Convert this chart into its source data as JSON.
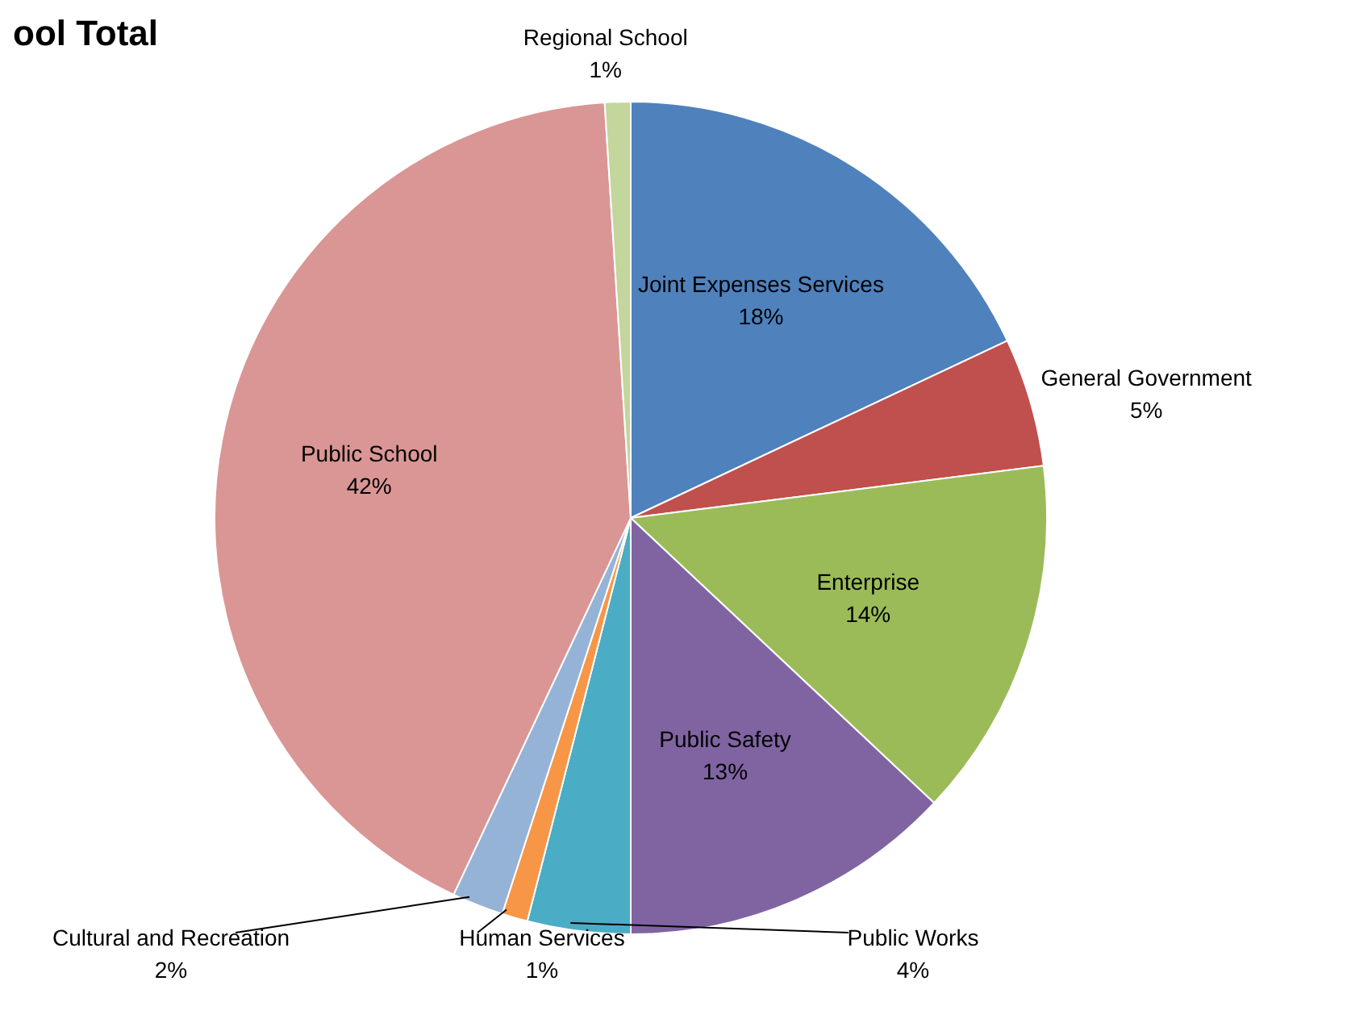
{
  "chart_data": {
    "type": "pie",
    "title": "ool Total",
    "categories": [
      "Joint Expenses Services",
      "General Government",
      "Enterprise",
      "Public Safety",
      "Public Works",
      "Human Services",
      "Cultural and Recreation",
      "Public School",
      "Regional School"
    ],
    "values": [
      18,
      5,
      14,
      13,
      4,
      1,
      2,
      42,
      1
    ],
    "colors": [
      "#4f81bd",
      "#c0504d",
      "#9bbb59",
      "#8064a2",
      "#4bacc6",
      "#f79646",
      "#95b3d7",
      "#d99694",
      "#c3d69b"
    ],
    "value_labels": [
      "18%",
      "5%",
      "14%",
      "13%",
      "4%",
      "1%",
      "2%",
      "42%",
      "1%"
    ]
  }
}
